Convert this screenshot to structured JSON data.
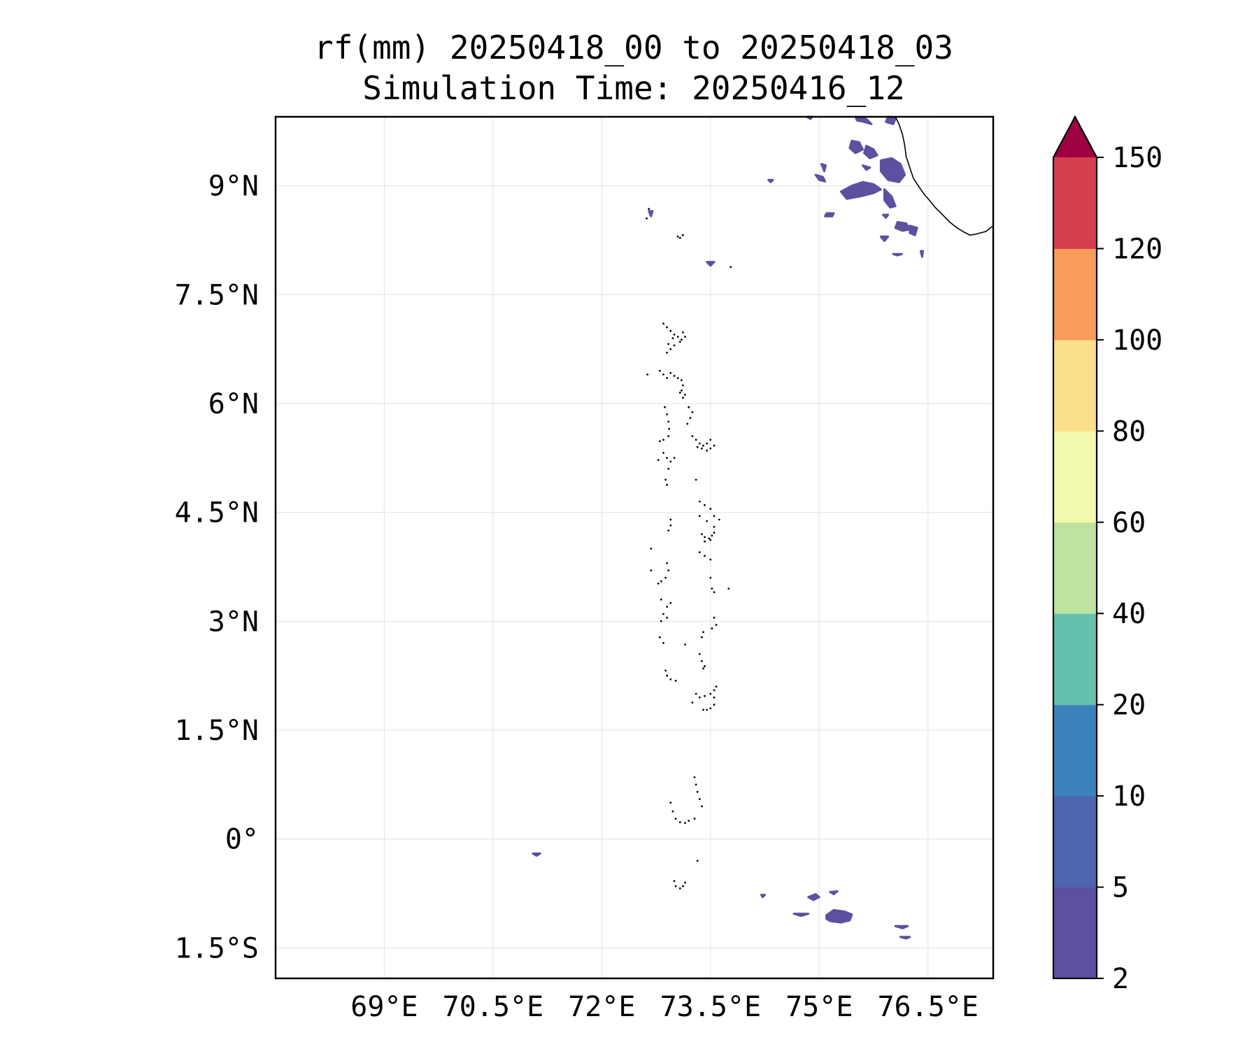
{
  "title": {
    "line1": "rf(mm) 20250418_00 to 20250418_03",
    "line2": "Simulation Time: 20250416_12"
  },
  "map": {
    "lon_range": [
      67.5,
      77.4
    ],
    "lat_range": [
      -1.92,
      9.95
    ],
    "x_ticks": [
      {
        "value": 69.0,
        "label": "69°E"
      },
      {
        "value": 70.5,
        "label": "70.5°E"
      },
      {
        "value": 72.0,
        "label": "72°E"
      },
      {
        "value": 73.5,
        "label": "73.5°E"
      },
      {
        "value": 75.0,
        "label": "75°E"
      },
      {
        "value": 76.5,
        "label": "76.5°E"
      }
    ],
    "y_ticks": [
      {
        "value": 9.0,
        "label": "9°N"
      },
      {
        "value": 7.5,
        "label": "7.5°N"
      },
      {
        "value": 6.0,
        "label": "6°N"
      },
      {
        "value": 4.5,
        "label": "4.5°N"
      },
      {
        "value": 3.0,
        "label": "3°N"
      },
      {
        "value": 1.5,
        "label": "1.5°N"
      },
      {
        "value": 0.0,
        "label": "0°"
      },
      {
        "value": -1.5,
        "label": "1.5°S"
      }
    ],
    "grid": true,
    "coastline_color": "#000000",
    "rain_color": "#5e50a1",
    "coastline_points": [
      [
        76.05,
        9.95
      ],
      [
        76.1,
        9.85
      ],
      [
        76.15,
        9.7
      ],
      [
        76.18,
        9.55
      ],
      [
        76.2,
        9.4
      ],
      [
        76.25,
        9.25
      ],
      [
        76.3,
        9.1
      ],
      [
        76.38,
        8.98
      ],
      [
        76.45,
        8.88
      ],
      [
        76.52,
        8.8
      ],
      [
        76.6,
        8.7
      ],
      [
        76.7,
        8.6
      ],
      [
        76.8,
        8.5
      ],
      [
        76.9,
        8.42
      ],
      [
        77.0,
        8.36
      ],
      [
        77.08,
        8.32
      ],
      [
        77.15,
        8.33
      ],
      [
        77.22,
        8.35
      ],
      [
        77.3,
        8.37
      ],
      [
        77.36,
        8.42
      ],
      [
        77.4,
        8.44
      ]
    ],
    "rain_patches": [
      [
        [
          75.5,
          9.95
        ],
        [
          75.65,
          9.92
        ],
        [
          75.72,
          9.85
        ],
        [
          75.62,
          9.88
        ],
        [
          75.52,
          9.9
        ]
      ],
      [
        [
          75.95,
          9.95
        ],
        [
          76.05,
          9.92
        ],
        [
          76.02,
          9.85
        ],
        [
          75.92,
          9.88
        ]
      ],
      [
        [
          75.45,
          9.62
        ],
        [
          75.55,
          9.6
        ],
        [
          75.6,
          9.5
        ],
        [
          75.5,
          9.45
        ],
        [
          75.42,
          9.52
        ]
      ],
      [
        [
          75.65,
          9.55
        ],
        [
          75.75,
          9.5
        ],
        [
          75.8,
          9.42
        ],
        [
          75.7,
          9.38
        ],
        [
          75.62,
          9.45
        ]
      ],
      [
        [
          75.85,
          9.35
        ],
        [
          76.0,
          9.38
        ],
        [
          76.12,
          9.3
        ],
        [
          76.18,
          9.15
        ],
        [
          76.1,
          9.05
        ],
        [
          75.95,
          9.08
        ],
        [
          75.85,
          9.2
        ]
      ],
      [
        [
          75.3,
          8.92
        ],
        [
          75.45,
          9.0
        ],
        [
          75.6,
          9.05
        ],
        [
          75.75,
          9.02
        ],
        [
          75.85,
          8.95
        ],
        [
          75.75,
          8.9
        ],
        [
          75.55,
          8.85
        ],
        [
          75.38,
          8.82
        ]
      ],
      [
        [
          75.9,
          8.95
        ],
        [
          76.0,
          8.85
        ],
        [
          76.05,
          8.72
        ],
        [
          75.98,
          8.7
        ],
        [
          75.9,
          8.8
        ]
      ],
      [
        [
          76.08,
          8.5
        ],
        [
          76.2,
          8.48
        ],
        [
          76.25,
          8.4
        ],
        [
          76.15,
          8.38
        ],
        [
          76.05,
          8.42
        ]
      ],
      [
        [
          76.25,
          8.45
        ],
        [
          76.35,
          8.42
        ],
        [
          76.32,
          8.32
        ],
        [
          76.25,
          8.35
        ]
      ],
      [
        [
          75.03,
          9.3
        ],
        [
          75.09,
          9.28
        ],
        [
          75.07,
          9.2
        ]
      ],
      [
        [
          75.6,
          9.28
        ],
        [
          75.7,
          9.25
        ],
        [
          75.65,
          9.22
        ]
      ],
      [
        [
          74.95,
          9.15
        ],
        [
          75.05,
          9.12
        ],
        [
          75.08,
          9.06
        ],
        [
          75.0,
          9.08
        ]
      ],
      [
        [
          75.1,
          8.62
        ],
        [
          75.2,
          8.62
        ],
        [
          75.18,
          8.58
        ],
        [
          75.08,
          8.58
        ]
      ],
      [
        [
          75.85,
          8.3
        ],
        [
          75.95,
          8.3
        ],
        [
          75.9,
          8.24
        ]
      ],
      [
        [
          75.88,
          8.6
        ],
        [
          75.95,
          8.6
        ],
        [
          75.92,
          8.56
        ]
      ],
      [
        [
          72.65,
          8.65
        ],
        [
          72.7,
          8.65
        ],
        [
          72.68,
          8.58
        ]
      ],
      [
        [
          73.45,
          7.95
        ],
        [
          73.55,
          7.95
        ],
        [
          73.5,
          7.9
        ]
      ],
      [
        [
          74.83,
          9.95
        ],
        [
          74.9,
          9.95
        ],
        [
          74.88,
          9.92
        ]
      ],
      [
        [
          74.3,
          9.08
        ],
        [
          74.36,
          9.08
        ],
        [
          74.33,
          9.05
        ]
      ],
      [
        [
          76.02,
          8.06
        ],
        [
          76.14,
          8.06
        ],
        [
          76.08,
          8.04
        ]
      ],
      [
        [
          76.4,
          8.1
        ],
        [
          76.43,
          8.1
        ],
        [
          76.42,
          8.02
        ]
      ],
      [
        [
          71.05,
          -0.2
        ],
        [
          71.15,
          -0.2
        ],
        [
          71.1,
          -0.23
        ]
      ],
      [
        [
          74.85,
          -0.8
        ],
        [
          74.95,
          -0.76
        ],
        [
          75.0,
          -0.8
        ],
        [
          74.92,
          -0.84
        ]
      ],
      [
        [
          75.15,
          -0.73
        ],
        [
          75.25,
          -0.72
        ],
        [
          75.2,
          -0.76
        ]
      ],
      [
        [
          75.1,
          -1.05
        ],
        [
          75.2,
          -0.98
        ],
        [
          75.35,
          -1.0
        ],
        [
          75.45,
          -1.04
        ],
        [
          75.42,
          -1.12
        ],
        [
          75.3,
          -1.15
        ],
        [
          75.15,
          -1.13
        ],
        [
          75.1,
          -1.1
        ]
      ],
      [
        [
          74.65,
          -1.03
        ],
        [
          74.85,
          -1.03
        ],
        [
          74.75,
          -1.06
        ]
      ],
      [
        [
          76.05,
          -1.2
        ],
        [
          76.22,
          -1.2
        ],
        [
          76.15,
          -1.23
        ]
      ],
      [
        [
          76.12,
          -1.35
        ],
        [
          76.25,
          -1.35
        ],
        [
          76.2,
          -1.37
        ]
      ],
      [
        [
          74.2,
          -0.77
        ],
        [
          74.25,
          -0.77
        ],
        [
          74.22,
          -0.8
        ]
      ]
    ],
    "island_points": [
      [
        72.65,
        8.68
      ],
      [
        72.62,
        8.55
      ],
      [
        73.05,
        8.3
      ],
      [
        73.08,
        8.28
      ],
      [
        73.12,
        8.32
      ],
      [
        73.78,
        7.88
      ],
      [
        72.85,
        7.1
      ],
      [
        72.9,
        7.05
      ],
      [
        72.95,
        7.0
      ],
      [
        73.0,
        6.95
      ],
      [
        73.05,
        6.92
      ],
      [
        73.1,
        6.88
      ],
      [
        73.15,
        6.92
      ],
      [
        73.12,
        6.98
      ],
      [
        73.08,
        6.85
      ],
      [
        73.0,
        6.8
      ],
      [
        72.95,
        6.75
      ],
      [
        72.9,
        6.7
      ],
      [
        72.92,
        6.82
      ],
      [
        72.98,
        6.9
      ],
      [
        72.63,
        6.4
      ],
      [
        72.8,
        6.45
      ],
      [
        72.85,
        6.4
      ],
      [
        72.9,
        6.35
      ],
      [
        72.95,
        6.42
      ],
      [
        73.0,
        6.38
      ],
      [
        73.05,
        6.35
      ],
      [
        73.1,
        6.32
      ],
      [
        73.12,
        6.25
      ],
      [
        73.1,
        6.18
      ],
      [
        73.15,
        6.12
      ],
      [
        73.12,
        6.08
      ],
      [
        73.08,
        6.15
      ],
      [
        72.87,
        5.95
      ],
      [
        72.9,
        5.85
      ],
      [
        72.92,
        5.75
      ],
      [
        72.93,
        5.65
      ],
      [
        72.92,
        5.55
      ],
      [
        72.85,
        5.5
      ],
      [
        72.8,
        5.48
      ],
      [
        73.2,
        5.95
      ],
      [
        73.25,
        5.88
      ],
      [
        73.22,
        5.8
      ],
      [
        73.18,
        5.72
      ],
      [
        73.25,
        5.55
      ],
      [
        73.3,
        5.5
      ],
      [
        73.35,
        5.45
      ],
      [
        73.4,
        5.42
      ],
      [
        73.45,
        5.45
      ],
      [
        73.5,
        5.5
      ],
      [
        73.55,
        5.42
      ],
      [
        73.5,
        5.38
      ],
      [
        73.45,
        5.35
      ],
      [
        73.38,
        5.38
      ],
      [
        73.32,
        5.4
      ],
      [
        72.85,
        5.32
      ],
      [
        72.9,
        5.25
      ],
      [
        72.95,
        5.2
      ],
      [
        73.0,
        5.25
      ],
      [
        72.92,
        5.1
      ],
      [
        72.88,
        4.95
      ],
      [
        72.9,
        4.88
      ],
      [
        72.78,
        5.22
      ],
      [
        73.3,
        4.95
      ],
      [
        73.35,
        4.65
      ],
      [
        73.42,
        4.6
      ],
      [
        73.5,
        4.55
      ],
      [
        73.35,
        4.45
      ],
      [
        73.45,
        4.38
      ],
      [
        73.55,
        4.3
      ],
      [
        73.62,
        4.4
      ],
      [
        73.55,
        4.45
      ],
      [
        72.95,
        4.4
      ],
      [
        72.95,
        4.32
      ],
      [
        72.92,
        4.25
      ],
      [
        73.38,
        4.2
      ],
      [
        73.42,
        4.16
      ],
      [
        73.48,
        4.14
      ],
      [
        73.52,
        4.18
      ],
      [
        73.55,
        4.22
      ],
      [
        73.5,
        4.12
      ],
      [
        73.42,
        4.1
      ],
      [
        72.68,
        4.0
      ],
      [
        72.9,
        3.8
      ],
      [
        72.92,
        3.7
      ],
      [
        72.88,
        3.6
      ],
      [
        72.82,
        3.55
      ],
      [
        72.78,
        3.52
      ],
      [
        72.68,
        3.7
      ],
      [
        73.35,
        3.95
      ],
      [
        73.42,
        3.9
      ],
      [
        73.5,
        3.85
      ],
      [
        73.5,
        3.6
      ],
      [
        73.52,
        3.45
      ],
      [
        73.55,
        3.4
      ],
      [
        73.75,
        3.45
      ],
      [
        72.82,
        3.3
      ],
      [
        72.9,
        3.2
      ],
      [
        72.95,
        3.25
      ],
      [
        72.85,
        3.1
      ],
      [
        72.82,
        3.0
      ],
      [
        72.9,
        3.05
      ],
      [
        73.55,
        3.05
      ],
      [
        73.58,
        2.95
      ],
      [
        73.52,
        2.9
      ],
      [
        73.4,
        2.85
      ],
      [
        73.38,
        2.78
      ],
      [
        72.8,
        2.78
      ],
      [
        72.85,
        2.7
      ],
      [
        73.15,
        2.68
      ],
      [
        73.35,
        2.55
      ],
      [
        73.38,
        2.45
      ],
      [
        73.42,
        2.38
      ],
      [
        73.4,
        2.35
      ],
      [
        72.88,
        2.32
      ],
      [
        72.9,
        2.25
      ],
      [
        72.95,
        2.2
      ],
      [
        73.02,
        2.18
      ],
      [
        73.3,
        2.0
      ],
      [
        73.35,
        1.95
      ],
      [
        73.42,
        1.97
      ],
      [
        73.5,
        2.0
      ],
      [
        73.55,
        2.05
      ],
      [
        73.58,
        2.1
      ],
      [
        73.55,
        1.95
      ],
      [
        73.55,
        1.85
      ],
      [
        73.5,
        1.8
      ],
      [
        73.45,
        1.78
      ],
      [
        73.4,
        1.78
      ],
      [
        73.25,
        1.88
      ],
      [
        73.28,
        0.85
      ],
      [
        73.3,
        0.75
      ],
      [
        73.32,
        0.65
      ],
      [
        73.35,
        0.55
      ],
      [
        73.38,
        0.45
      ],
      [
        72.95,
        0.5
      ],
      [
        72.98,
        0.38
      ],
      [
        73.02,
        0.28
      ],
      [
        73.08,
        0.23
      ],
      [
        73.15,
        0.22
      ],
      [
        73.2,
        0.25
      ],
      [
        73.28,
        0.28
      ],
      [
        73.32,
        -0.3
      ],
      [
        73.0,
        -0.58
      ],
      [
        73.02,
        -0.65
      ],
      [
        73.08,
        -0.68
      ],
      [
        73.12,
        -0.65
      ],
      [
        73.15,
        -0.6
      ]
    ]
  },
  "colorbar": {
    "levels": [
      {
        "label": "2",
        "color": "#5e4fa2"
      },
      {
        "label": "5",
        "color": "#4f65ad"
      },
      {
        "label": "10",
        "color": "#3b82ba"
      },
      {
        "label": "20",
        "color": "#65c0ae"
      },
      {
        "label": "40",
        "color": "#bee3a0"
      },
      {
        "label": "60",
        "color": "#f3f9ad"
      },
      {
        "label": "80",
        "color": "#fcdf8b"
      },
      {
        "label": "100",
        "color": "#f89d59"
      },
      {
        "label": "120",
        "color": "#d53e4f"
      },
      {
        "label": "150",
        "color": "#9e0142"
      }
    ],
    "extend": "max"
  }
}
